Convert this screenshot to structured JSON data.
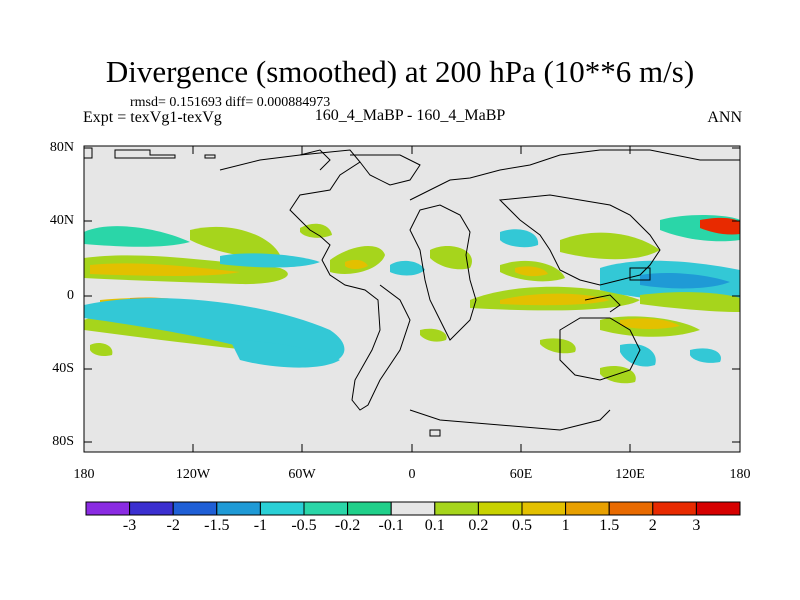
{
  "header": {
    "title": "Divergence (smoothed) at 200 hPa (10**6 m/s)",
    "stats": "rmsd= 0.151693 diff= 0.000884973",
    "expt": "Expt = texVg1-texVg",
    "case": "160_4_MaBP - 160_4_MaBP",
    "season": "ANN"
  },
  "map": {
    "lat_ticks": [
      "80N",
      "40N",
      "0",
      "40S",
      "80S"
    ],
    "lon_ticks": [
      "180",
      "120W",
      "60W",
      "0",
      "60E",
      "120E",
      "180"
    ],
    "lat_values": [
      80,
      40,
      0,
      -40,
      -80
    ],
    "lon_values": [
      -180,
      -120,
      -60,
      0,
      60,
      120,
      180
    ],
    "colors": {
      "background": "#e6e6e6",
      "green_light": "#a6d51c",
      "yellow": "#e3c000",
      "orange": "#e8a000",
      "cyan": "#33c8d6",
      "teal": "#2ad6a8",
      "coast": "#000000"
    }
  },
  "colorbar": {
    "labels": [
      "-3",
      "-2",
      "-1.5",
      "-1",
      "-0.5",
      "-0.2",
      "-0.1",
      "0.1",
      "0.2",
      "0.5",
      "1",
      "1.5",
      "2",
      "3"
    ],
    "colors": [
      "#8a2be2",
      "#3b2fd0",
      "#1f5fd6",
      "#1f9ad6",
      "#2ad0d6",
      "#2ad6a8",
      "#20d08a",
      "#e6e6e6",
      "#a6d51c",
      "#c8d200",
      "#e3c000",
      "#e8a000",
      "#e86a00",
      "#e82a00",
      "#d60000"
    ]
  }
}
